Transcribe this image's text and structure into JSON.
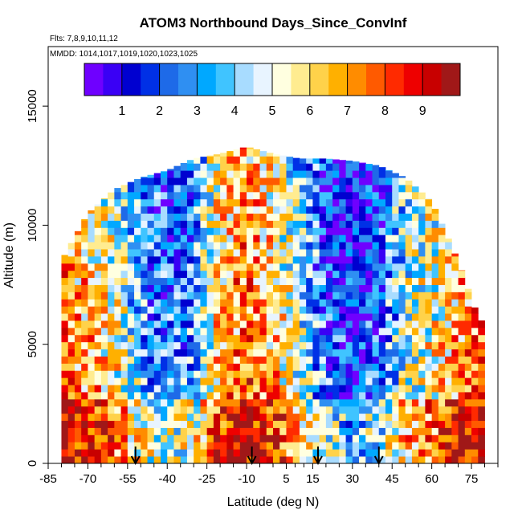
{
  "chart_data": {
    "type": "heatmap",
    "title": "ATOM3 Northbound Days_Since_ConvInf",
    "flights_label": "Flts: 7,8,9,10,11,12",
    "dates_label": "MMDD: 1014,1017,1019,1020,1023,1025",
    "xlabel": "Latitude (deg N)",
    "ylabel": "Altitude (m)",
    "xlim": [
      -85,
      85
    ],
    "ylim": [
      0,
      17500
    ],
    "x_tick_labels": [
      -85,
      -70,
      -55,
      -40,
      -25,
      -10,
      5,
      15,
      30,
      45,
      60,
      75
    ],
    "y_tick_labels": [
      0,
      5000,
      10000,
      15000
    ],
    "colorbar": {
      "min": 0,
      "max": 10,
      "tick_labels": [
        1,
        2,
        3,
        4,
        5,
        6,
        7,
        8,
        9
      ],
      "colors": [
        "#6f00ff",
        "#3a00f5",
        "#0000d0",
        "#0030e6",
        "#1e6ae8",
        "#2f8ff2",
        "#00a8ff",
        "#40c4ff",
        "#a8dcff",
        "#e8f4ff",
        "#ffffe0",
        "#ffec90",
        "#ffd24a",
        "#ffb000",
        "#ff8c00",
        "#ff5a00",
        "#ff2a00",
        "#ee0000",
        "#c80000",
        "#a01818"
      ]
    },
    "altitude_envelope": [
      {
        "lat": -80,
        "top": 8500
      },
      {
        "lat": -70,
        "top": 10500
      },
      {
        "lat": -60,
        "top": 11500
      },
      {
        "lat": -50,
        "top": 12000
      },
      {
        "lat": -40,
        "top": 12300
      },
      {
        "lat": -30,
        "top": 12800
      },
      {
        "lat": -20,
        "top": 13000
      },
      {
        "lat": -10,
        "top": 13300
      },
      {
        "lat": 0,
        "top": 13000
      },
      {
        "lat": 10,
        "top": 12800
      },
      {
        "lat": 20,
        "top": 12800
      },
      {
        "lat": 30,
        "top": 12700
      },
      {
        "lat": 40,
        "top": 12500
      },
      {
        "lat": 50,
        "top": 12000
      },
      {
        "lat": 60,
        "top": 11000
      },
      {
        "lat": 70,
        "top": 8500
      },
      {
        "lat": 78,
        "top": 6000
      }
    ],
    "days_profile": [
      {
        "lat": -80,
        "value": 8.0
      },
      {
        "lat": -70,
        "value": 7.0
      },
      {
        "lat": -60,
        "value": 6.0
      },
      {
        "lat": -50,
        "value": 4.0
      },
      {
        "lat": -40,
        "value": 3.0
      },
      {
        "lat": -30,
        "value": 4.0
      },
      {
        "lat": -20,
        "value": 7.0
      },
      {
        "lat": -10,
        "value": 8.0
      },
      {
        "lat": 0,
        "value": 7.0
      },
      {
        "lat": 10,
        "value": 5.0
      },
      {
        "lat": 20,
        "value": 3.0
      },
      {
        "lat": 30,
        "value": 2.0
      },
      {
        "lat": 40,
        "value": 3.0
      },
      {
        "lat": 50,
        "value": 5.0
      },
      {
        "lat": 60,
        "value": 6.0
      },
      {
        "lat": 70,
        "value": 7.0
      },
      {
        "lat": 78,
        "value": 8.0
      }
    ],
    "marker_latitudes": [
      -52,
      -8,
      17,
      40
    ]
  }
}
